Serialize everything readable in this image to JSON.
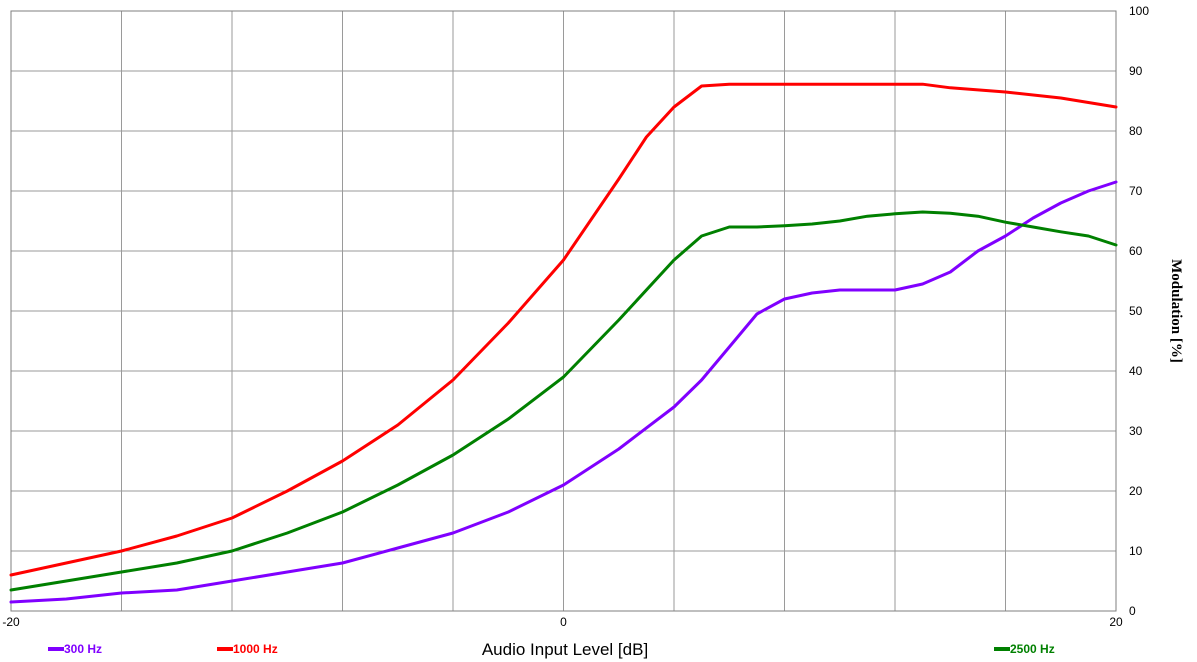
{
  "chart_data": {
    "type": "line",
    "xlabel": "Audio Input Level [dB]",
    "ylabel": "Modulation [%]",
    "xlim": [
      -20,
      20
    ],
    "ylim": [
      0,
      100
    ],
    "x_ticks": [
      "-20",
      "0",
      "20"
    ],
    "y_ticks": [
      "0",
      "10",
      "20",
      "30",
      "40",
      "50",
      "60",
      "70",
      "80",
      "90",
      "100"
    ],
    "grid": true,
    "series": [
      {
        "name": "300 Hz",
        "color": "#8000ff",
        "x": [
          -20,
          -18,
          -16,
          -14,
          -12,
          -10,
          -8,
          -6,
          -4,
          -2,
          0,
          2,
          4,
          5,
          6,
          7,
          8,
          9,
          10,
          11,
          12,
          13,
          14,
          15,
          16,
          17,
          18,
          19,
          20
        ],
        "y": [
          1.5,
          2,
          3,
          3.5,
          5,
          6.5,
          8,
          10.5,
          13,
          16.5,
          21,
          27,
          34,
          38.5,
          44,
          49.5,
          52,
          53,
          53.5,
          53.5,
          53.5,
          54.5,
          56.5,
          60,
          62.5,
          65.5,
          68,
          70,
          71.5
        ]
      },
      {
        "name": "1000 Hz",
        "color": "#ff0000",
        "x": [
          -20,
          -18,
          -16,
          -14,
          -12,
          -10,
          -8,
          -6,
          -4,
          -2,
          0,
          2,
          3,
          4,
          5,
          6,
          8,
          10,
          12,
          13,
          14,
          16,
          18,
          20
        ],
        "y": [
          6,
          8,
          10,
          12.5,
          15.5,
          20,
          25,
          31,
          38.5,
          48,
          58.5,
          72,
          79,
          84,
          87.5,
          87.8,
          87.8,
          87.8,
          87.8,
          87.8,
          87.2,
          86.5,
          85.5,
          84
        ]
      },
      {
        "name": "2500 Hz",
        "color": "#008000",
        "x": [
          -20,
          -18,
          -16,
          -14,
          -12,
          -10,
          -8,
          -6,
          -4,
          -2,
          0,
          2,
          4,
          5,
          6,
          7,
          8,
          9,
          10,
          11,
          12,
          13,
          14,
          15,
          16,
          17,
          18,
          19,
          20
        ],
        "y": [
          3.5,
          5,
          6.5,
          8,
          10,
          13,
          16.5,
          21,
          26,
          32,
          39,
          48.5,
          58.5,
          62.5,
          64,
          64,
          64.2,
          64.5,
          65,
          65.8,
          66.2,
          66.5,
          66.3,
          65.8,
          64.8,
          64,
          63.2,
          62.5,
          61
        ]
      }
    ]
  }
}
